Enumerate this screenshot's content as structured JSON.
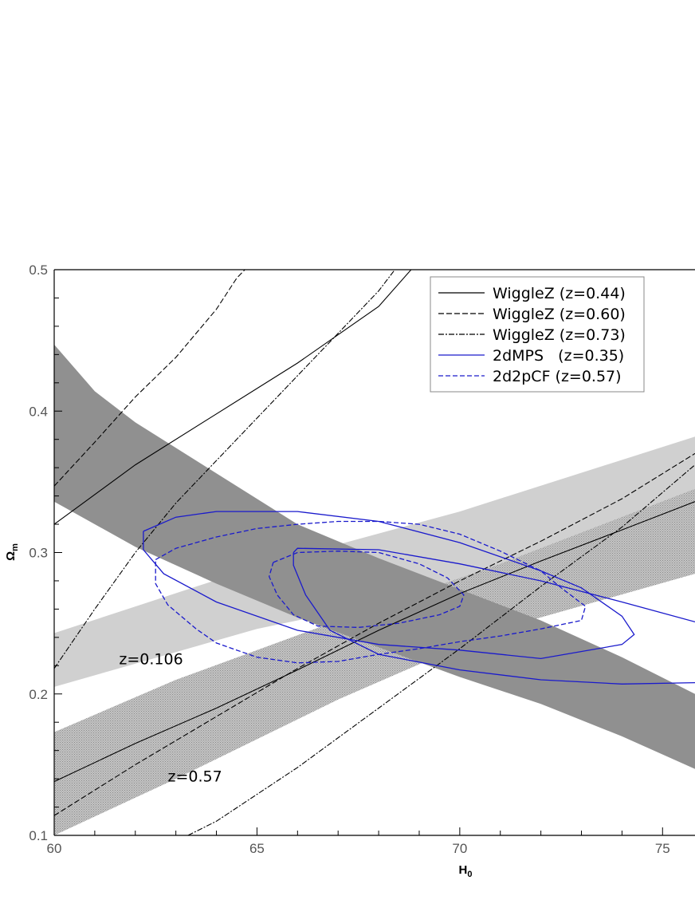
{
  "chart_data": {
    "type": "line",
    "xlabel": "H",
    "xlabel_sub": "0",
    "ylabel": "Ω",
    "ylabel_sub": "m",
    "xlim": [
      60,
      75.8
    ],
    "ylim": [
      0.1,
      0.5
    ],
    "x_ticks": [
      {
        "v": 60,
        "label": "60"
      },
      {
        "v": 65,
        "label": "65"
      },
      {
        "v": 70,
        "label": "70"
      },
      {
        "v": 75,
        "label": "75"
      }
    ],
    "y_ticks": [
      {
        "v": 0.1,
        "label": "0.1"
      },
      {
        "v": 0.2,
        "label": "0.2"
      },
      {
        "v": 0.3,
        "label": "0.3"
      },
      {
        "v": 0.4,
        "label": "0.4"
      },
      {
        "v": 0.5,
        "label": "0.5"
      }
    ],
    "grid": false,
    "legend_position": "top-right",
    "bands": [
      {
        "label": "z=0.106",
        "color": "#d0d0d0",
        "pattern": false,
        "lower": [
          [
            60,
            0.205
          ],
          [
            65,
            0.246
          ],
          [
            70,
            0.276
          ],
          [
            75.8,
            0.302
          ]
        ],
        "upper": [
          [
            60,
            0.243
          ],
          [
            65,
            0.29
          ],
          [
            70,
            0.329
          ],
          [
            75.8,
            0.382
          ]
        ]
      },
      {
        "label": "z=0.57",
        "color": "#b8b8b8",
        "pattern": true,
        "lower": [
          [
            60,
            0.1
          ],
          [
            63,
            0.14
          ],
          [
            67,
            0.196
          ],
          [
            71,
            0.246
          ],
          [
            75.8,
            0.285
          ]
        ],
        "upper": [
          [
            60,
            0.173
          ],
          [
            63,
            0.21
          ],
          [
            67,
            0.252
          ],
          [
            71,
            0.292
          ],
          [
            75.8,
            0.345
          ]
        ]
      },
      {
        "label": "",
        "color": "#909090",
        "pattern": false,
        "lower": [
          [
            60,
            0.336
          ],
          [
            62,
            0.304
          ],
          [
            64,
            0.278
          ],
          [
            66,
            0.254
          ],
          [
            68,
            0.233
          ],
          [
            70,
            0.212
          ],
          [
            72,
            0.193
          ],
          [
            74,
            0.17
          ],
          [
            75.8,
            0.147
          ]
        ],
        "upper": [
          [
            60,
            0.447
          ],
          [
            61,
            0.414
          ],
          [
            62,
            0.392
          ],
          [
            64,
            0.356
          ],
          [
            66,
            0.32
          ],
          [
            68,
            0.296
          ],
          [
            70,
            0.274
          ],
          [
            72,
            0.252
          ],
          [
            74,
            0.226
          ],
          [
            75.8,
            0.2
          ]
        ]
      }
    ],
    "series": [
      {
        "name": "WiggleZ (z=0.44)",
        "color": "#000000",
        "dash": "",
        "lines": [
          [
            [
              60,
              0.32
            ],
            [
              62,
              0.362
            ],
            [
              64,
              0.398
            ],
            [
              66,
              0.434
            ],
            [
              68,
              0.474
            ],
            [
              68.8,
              0.5
            ]
          ],
          [
            [
              60,
              0.138
            ],
            [
              62,
              0.165
            ],
            [
              64,
              0.19
            ],
            [
              66,
              0.217
            ],
            [
              68,
              0.245
            ],
            [
              70,
              0.271
            ],
            [
              72,
              0.294
            ],
            [
              74,
              0.316
            ],
            [
              75.8,
              0.336
            ]
          ]
        ]
      },
      {
        "name": "WiggleZ (z=0.60)",
        "color": "#000000",
        "dash": "7,3",
        "lines": [
          [
            [
              60,
              0.347
            ],
            [
              61,
              0.378
            ],
            [
              62,
              0.41
            ],
            [
              63,
              0.438
            ],
            [
              64,
              0.472
            ],
            [
              64.5,
              0.494
            ],
            [
              64.7,
              0.5
            ]
          ],
          [
            [
              60,
              0.114
            ],
            [
              62,
              0.15
            ],
            [
              64,
              0.184
            ],
            [
              66,
              0.218
            ],
            [
              68,
              0.25
            ],
            [
              70,
              0.28
            ],
            [
              72,
              0.308
            ],
            [
              74,
              0.338
            ],
            [
              75.8,
              0.37
            ]
          ]
        ]
      },
      {
        "name": "WiggleZ (z=0.73)",
        "color": "#000000",
        "dash": "7,2,2,2",
        "lines": [
          [
            [
              60,
              0.218
            ],
            [
              61,
              0.26
            ],
            [
              62,
              0.3
            ],
            [
              63,
              0.335
            ],
            [
              64,
              0.365
            ],
            [
              65,
              0.395
            ],
            [
              66,
              0.425
            ],
            [
              67,
              0.455
            ],
            [
              68,
              0.485
            ],
            [
              68.4,
              0.5
            ]
          ],
          [
            [
              63.3,
              0.1
            ],
            [
              64,
              0.11
            ],
            [
              66,
              0.148
            ],
            [
              68,
              0.19
            ],
            [
              70,
              0.232
            ],
            [
              72,
              0.276
            ],
            [
              74,
              0.318
            ],
            [
              75.8,
              0.362
            ]
          ]
        ]
      },
      {
        "name": "2dMPS   (z=0.35)",
        "color": "#1a1acc",
        "dash": "",
        "lines": [
          [
            [
              62.2,
              0.315
            ],
            [
              63,
              0.325
            ],
            [
              64,
              0.329
            ],
            [
              66,
              0.329
            ],
            [
              68,
              0.322
            ],
            [
              70,
              0.307
            ],
            [
              72,
              0.287
            ],
            [
              73,
              0.275
            ],
            [
              74,
              0.255
            ],
            [
              74.3,
              0.242
            ],
            [
              74,
              0.235
            ],
            [
              72,
              0.225
            ],
            [
              70,
              0.231
            ],
            [
              68,
              0.235
            ],
            [
              66,
              0.245
            ],
            [
              64,
              0.265
            ],
            [
              62.7,
              0.285
            ],
            [
              62.2,
              0.302
            ],
            [
              62.2,
              0.315
            ]
          ],
          [
            [
              65.9,
              0.3
            ],
            [
              66,
              0.303
            ],
            [
              68,
              0.302
            ],
            [
              70,
              0.292
            ],
            [
              72,
              0.28
            ],
            [
              74,
              0.265
            ],
            [
              75.8,
              0.251
            ]
          ],
          [
            [
              75.8,
              0.208
            ],
            [
              74,
              0.207
            ],
            [
              72,
              0.21
            ],
            [
              70,
              0.217
            ],
            [
              68,
              0.228
            ],
            [
              66.8,
              0.245
            ],
            [
              66.2,
              0.27
            ],
            [
              65.9,
              0.291
            ],
            [
              65.9,
              0.3
            ]
          ]
        ]
      },
      {
        "name": "2d2pCF (z=0.57)",
        "color": "#1a1acc",
        "dash": "6,3",
        "lines": [
          [
            [
              62.5,
              0.295
            ],
            [
              63,
              0.303
            ],
            [
              64,
              0.311
            ],
            [
              65,
              0.317
            ],
            [
              66,
              0.32
            ],
            [
              67,
              0.322
            ],
            [
              68,
              0.322
            ],
            [
              69,
              0.32
            ],
            [
              70,
              0.313
            ],
            [
              71,
              0.301
            ],
            [
              72,
              0.287
            ],
            [
              72.5,
              0.275
            ],
            [
              73.1,
              0.262
            ],
            [
              73.0,
              0.252
            ],
            [
              72,
              0.246
            ],
            [
              71,
              0.241
            ],
            [
              70,
              0.237
            ],
            [
              69,
              0.232
            ],
            [
              68,
              0.228
            ],
            [
              67,
              0.223
            ],
            [
              66,
              0.222
            ],
            [
              65,
              0.226
            ],
            [
              64,
              0.236
            ],
            [
              63.5,
              0.246
            ],
            [
              62.8,
              0.263
            ],
            [
              62.5,
              0.278
            ],
            [
              62.5,
              0.295
            ]
          ],
          [
            [
              65.4,
              0.293
            ],
            [
              66,
              0.3
            ],
            [
              67,
              0.301
            ],
            [
              68,
              0.3
            ],
            [
              69,
              0.292
            ],
            [
              69.7,
              0.282
            ],
            [
              70.1,
              0.27
            ],
            [
              70.0,
              0.262
            ],
            [
              69.5,
              0.256
            ],
            [
              68.5,
              0.25
            ],
            [
              67.5,
              0.247
            ],
            [
              66.5,
              0.248
            ],
            [
              65.9,
              0.256
            ],
            [
              65.5,
              0.27
            ],
            [
              65.3,
              0.283
            ],
            [
              65.4,
              0.293
            ]
          ]
        ]
      }
    ],
    "annotations": [
      {
        "text": "z=0.106",
        "x": 61.6,
        "y": 0.221
      },
      {
        "text": "z=0.57",
        "x": 62.8,
        "y": 0.138
      }
    ],
    "legend": [
      {
        "label": "WiggleZ (z=0.44)",
        "color": "#000000",
        "dash": ""
      },
      {
        "label": "WiggleZ (z=0.60)",
        "color": "#000000",
        "dash": "7,3"
      },
      {
        "label": "WiggleZ (z=0.73)",
        "color": "#000000",
        "dash": "7,2,2,2"
      },
      {
        "label": "2dMPS   (z=0.35)",
        "color": "#1a1acc",
        "dash": ""
      },
      {
        "label": "2d2pCF (z=0.57)",
        "color": "#1a1acc",
        "dash": "6,3"
      }
    ]
  }
}
